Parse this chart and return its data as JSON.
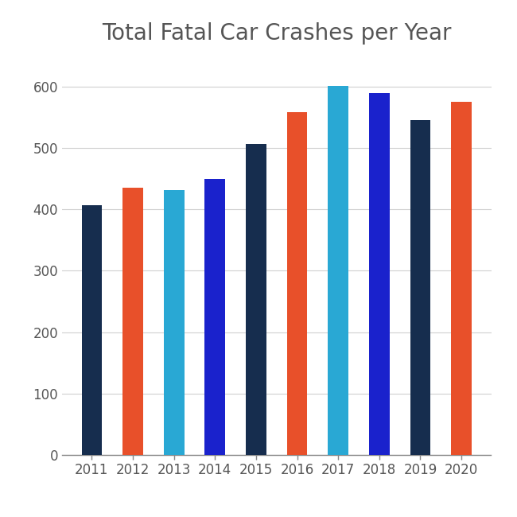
{
  "title": "Total Fatal Car Crashes per Year",
  "years": [
    "2011",
    "2012",
    "2013",
    "2014",
    "2015",
    "2016",
    "2017",
    "2018",
    "2019",
    "2020"
  ],
  "values": [
    407,
    435,
    432,
    450,
    507,
    558,
    601,
    590,
    546,
    575
  ],
  "bar_colors": [
    "#162d4e",
    "#e8502a",
    "#29a8d4",
    "#1a22cc",
    "#162d4e",
    "#e8502a",
    "#29a8d4",
    "#1a22cc",
    "#162d4e",
    "#e8502a"
  ],
  "title_fontsize": 20,
  "title_color": "#555555",
  "tick_label_color": "#555555",
  "tick_fontsize": 12,
  "ylim": [
    0,
    640
  ],
  "yticks": [
    0,
    100,
    200,
    300,
    400,
    500,
    600
  ],
  "background_color": "#ffffff",
  "grid_color": "#d0d0d0",
  "bar_width": 0.5
}
